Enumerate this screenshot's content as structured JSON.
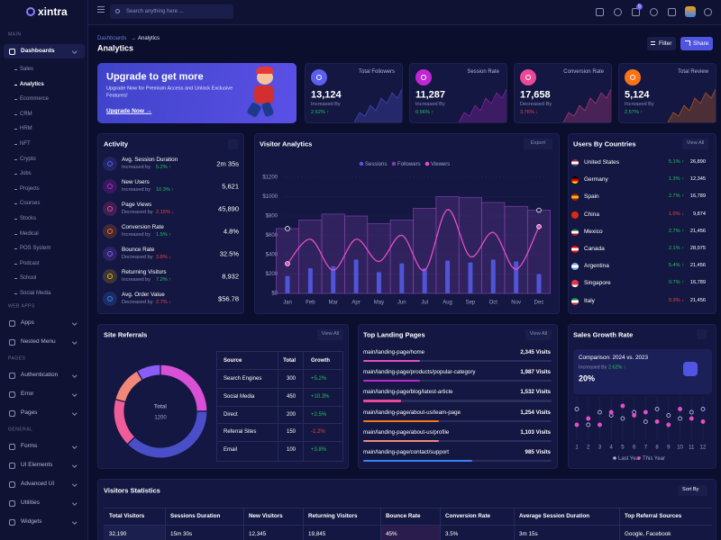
{
  "sidebar": {
    "logo": "xintra",
    "groups": [
      {
        "title": "MAIN",
        "items": [
          {
            "label": "Dashboards",
            "children": [
              "Sales",
              "Analytics",
              "Ecommerce",
              "CRM",
              "HRM",
              "NFT",
              "Crypto",
              "Jobs",
              "Projects",
              "Courses",
              "Stocks",
              "Medical",
              "POS System",
              "Podcast",
              "School",
              "Social Media"
            ]
          }
        ]
      },
      {
        "title": "WEB APPS",
        "items": [
          {
            "label": "Apps"
          },
          {
            "label": "Nested Menu"
          }
        ]
      },
      {
        "title": "PAGES",
        "items": [
          {
            "label": "Authentication"
          },
          {
            "label": "Error"
          },
          {
            "label": "Pages"
          }
        ]
      },
      {
        "title": "GENERAL",
        "items": [
          {
            "label": "Forms"
          },
          {
            "label": "UI Elements"
          },
          {
            "label": "Advanced UI"
          },
          {
            "label": "Utilities"
          },
          {
            "label": "Widgets"
          }
        ]
      }
    ]
  },
  "header": {
    "search_placeholder": "Search anything here ...",
    "badge": "5"
  },
  "breadcrumb": {
    "items": [
      "Dashboards",
      "Analytics"
    ],
    "separator": "→"
  },
  "page_title": "Analytics",
  "actions": [
    "Filter",
    "Share"
  ],
  "upgrade": {
    "title": "Upgrade to get more",
    "text": "Upgrade Now for Premium Access and Unlock Exclusive Features!",
    "link": "Upgrade Now →"
  },
  "stats": [
    {
      "label": "Total Followers",
      "value": "13,124",
      "note": "Increased By",
      "change": "2.62% ↑",
      "trend": "up",
      "icon_color": "#5b5ff0"
    },
    {
      "label": "Session Rate",
      "value": "11,287",
      "note": "Increased By",
      "change": "0.56% ↑",
      "trend": "up",
      "icon_color": "#c026d3"
    },
    {
      "label": "Conversion Rate",
      "value": "17,658",
      "note": "Decreased By",
      "change": "3.76% ↓",
      "trend": "down",
      "icon_color": "#ec4899"
    },
    {
      "label": "Total Review",
      "value": "5,124",
      "note": "Increased By",
      "change": "2.57% ↑",
      "trend": "up",
      "icon_color": "#f97316"
    }
  ],
  "activity": {
    "title": "Activity",
    "items": [
      {
        "label": "Avg. Session Duration",
        "note": "Increased by",
        "change": "5.2% ↑",
        "trend": "up",
        "value": "2m 35s",
        "icon_color": "#5b5ff0"
      },
      {
        "label": "New Users",
        "note": "Increased by",
        "change": "10.3% ↑",
        "trend": "up",
        "value": "5,621",
        "icon_color": "#c026d3"
      },
      {
        "label": "Page Views",
        "note": "Decreased by",
        "change": "2.15% ↓",
        "trend": "down",
        "value": "45,890",
        "icon_color": "#ec4899"
      },
      {
        "label": "Conversion Rate",
        "note": "Increased by",
        "change": "1.5% ↑",
        "trend": "up",
        "value": "4.8%",
        "icon_color": "#f97316"
      },
      {
        "label": "Bounce Rate",
        "note": "Decreased by",
        "change": "3.8% ↓",
        "trend": "down",
        "value": "32.5%",
        "icon_color": "#8b5cf6"
      },
      {
        "label": "Returning Visitors",
        "note": "Increased by",
        "change": "7.2% ↑",
        "trend": "up",
        "value": "8,932",
        "icon_color": "#eab308"
      },
      {
        "label": "Avg. Order Value",
        "note": "Decreased by",
        "change": "2.7% ↓",
        "trend": "down",
        "value": "$56.78",
        "icon_color": "#3b82f6"
      }
    ]
  },
  "visitor_analytics": {
    "export": "Export"
  },
  "chart_data": [
    {
      "type": "combo",
      "title": "Visitor Analytics",
      "categories": [
        "Jan",
        "Feb",
        "Mar",
        "Apr",
        "May",
        "Jun",
        "Jul",
        "Aug",
        "Sep",
        "Oct",
        "Nov",
        "Dec"
      ],
      "series": [
        {
          "name": "Sessions",
          "kind": "bar",
          "color": "#4f55d6",
          "values": [
            180,
            260,
            280,
            350,
            220,
            310,
            260,
            340,
            320,
            350,
            330,
            200
          ]
        },
        {
          "name": "Followers",
          "kind": "step",
          "color": "#7e3fa8",
          "values": [
            670,
            760,
            820,
            800,
            720,
            760,
            880,
            1000,
            990,
            940,
            900,
            860
          ]
        },
        {
          "name": "Viewers",
          "kind": "line",
          "color": "#e24fc5",
          "values": [
            307,
            560,
            240,
            560,
            330,
            600,
            240,
            865,
            380,
            630,
            250,
            690
          ]
        }
      ],
      "ylim": [
        0,
        1200
      ],
      "yticks": [
        {
          "value": 0,
          "label": "$0"
        },
        {
          "value": 200,
          "label": "$200"
        },
        {
          "value": 400,
          "label": "$400"
        },
        {
          "value": 600,
          "label": "$600"
        },
        {
          "value": 800,
          "label": "$800"
        },
        {
          "value": 1000,
          "label": "$1000"
        },
        {
          "value": 1200,
          "label": "$1200"
        }
      ],
      "grid": true
    },
    {
      "type": "scatter",
      "title": "Sales Growth Rate",
      "x": [
        1,
        2,
        3,
        4,
        5,
        6,
        7,
        8,
        9,
        10,
        11,
        12
      ],
      "series": [
        {
          "name": "Last Year",
          "color": "#b9a7e8",
          "values": [
            45,
            20,
            40,
            35,
            30,
            40,
            25,
            45,
            35,
            30,
            40,
            45
          ]
        },
        {
          "name": "This Year",
          "color": "#e24fc5",
          "values": [
            20,
            30,
            20,
            40,
            50,
            35,
            40,
            25,
            20,
            45,
            30,
            25
          ]
        }
      ],
      "xlim": [
        0.5,
        12.5
      ],
      "xticks": [
        1,
        2,
        3,
        4,
        5,
        6,
        7,
        8,
        9,
        10,
        11,
        12
      ],
      "ylim": [
        0,
        60
      ]
    }
  ],
  "countries": {
    "title": "Users By Countries",
    "view_all": "View All",
    "rows": [
      {
        "name": "United States",
        "change": "5.1% ↑",
        "trend": "up",
        "value": "26,890",
        "flag": [
          "#b22234",
          "#ffffff",
          "#3c3b6e"
        ]
      },
      {
        "name": "Germany",
        "change": "1.3% ↑",
        "trend": "up",
        "value": "12,345",
        "flag": [
          "#000000",
          "#dd0000",
          "#ffce00"
        ]
      },
      {
        "name": "Spain",
        "change": "2.7% ↑",
        "trend": "up",
        "value": "16,789",
        "flag": [
          "#aa151b",
          "#f1bf00",
          "#aa151b"
        ]
      },
      {
        "name": "China",
        "change": "1.0% ↓",
        "trend": "down",
        "value": "9,874",
        "flag": [
          "#de2910",
          "#de2910",
          "#de2910"
        ]
      },
      {
        "name": "Mexico",
        "change": "2.7% ↑",
        "trend": "up",
        "value": "21,456",
        "flag": [
          "#006847",
          "#ffffff",
          "#ce1126"
        ]
      },
      {
        "name": "Canada",
        "change": "2.1% ↑",
        "trend": "up",
        "value": "28,975",
        "flag": [
          "#ff0000",
          "#ffffff",
          "#ff0000"
        ]
      },
      {
        "name": "Argentina",
        "change": "5.4% ↑",
        "trend": "up",
        "value": "21,456",
        "flag": [
          "#74acdf",
          "#ffffff",
          "#74acdf"
        ]
      },
      {
        "name": "Singapore",
        "change": "0.7% ↑",
        "trend": "up",
        "value": "16,789",
        "flag": [
          "#ef3340",
          "#ef3340",
          "#ffffff"
        ]
      },
      {
        "name": "Italy",
        "change": "0.3% ↓",
        "trend": "down",
        "value": "21,456",
        "flag": [
          "#009246",
          "#ffffff",
          "#ce2b37"
        ]
      }
    ]
  },
  "site_referrals": {
    "title": "Site Referrals",
    "view_all": "View All",
    "total_label": "Total",
    "total": 1200,
    "columns": [
      "Source",
      "Total",
      "Growth"
    ],
    "rows": [
      {
        "source": "Search Engines",
        "total": 300,
        "growth": "+5.2%",
        "trend": "up",
        "color": "#d94fd6"
      },
      {
        "source": "Social Media",
        "total": 450,
        "growth": "+10.3%",
        "trend": "up",
        "color": "#4a4fc9"
      },
      {
        "source": "Direct",
        "total": 200,
        "growth": "+2.5%",
        "trend": "up",
        "color": "#f05b9a"
      },
      {
        "source": "Referral Sites",
        "total": 150,
        "growth": "-1.2%",
        "trend": "down",
        "color": "#f0877a"
      },
      {
        "source": "Email",
        "total": 100,
        "growth": "+3.8%",
        "trend": "up",
        "color": "#8b5cf6"
      }
    ]
  },
  "landing_pages": {
    "title": "Top Landing Pages",
    "view_all": "View All",
    "rows": [
      {
        "path": "main/landing-page/home",
        "visits": "2,345 Visits",
        "progress": 30,
        "color": "#e24fc5"
      },
      {
        "path": "main/landing-page/products/popular-category",
        "visits": "1,987 Visits",
        "progress": 30,
        "color": "#c026d3"
      },
      {
        "path": "main/landing-page/blog/latest-article",
        "visits": "1,532 Visits",
        "progress": 20,
        "color": "#ec4899"
      },
      {
        "path": "main/landing-page/about-us/team-page",
        "visits": "1,254 Visits",
        "progress": 40,
        "color": "#f97316"
      },
      {
        "path": "main/landing-page/about-us/profile",
        "visits": "1,103 Visits",
        "progress": 40,
        "color": "#f0877a"
      },
      {
        "path": "main/landing-page/contact/support",
        "visits": "985 Visits",
        "progress": 58,
        "color": "#3b82f6"
      }
    ]
  },
  "sales_growth": {
    "comparison": "Comparison: 2024 vs. 2023",
    "note": "Increased By",
    "change": "2.62% ↑",
    "value": "20%"
  },
  "visitors_statistics": {
    "title": "Visitors Statistics",
    "sort": "Sort By",
    "columns": [
      "Total Visitors",
      "Sessions Duration",
      "New Visitors",
      "Returning Visitors",
      "Bounce Rate",
      "Conversion Rate",
      "Average Session Duration",
      "Top Referral Sources"
    ],
    "rows": [
      [
        "32,190",
        "15m 30s",
        "12,345",
        "19,845",
        "45%",
        "3.5%",
        "3m 15s",
        "Google, Facebook"
      ]
    ]
  }
}
